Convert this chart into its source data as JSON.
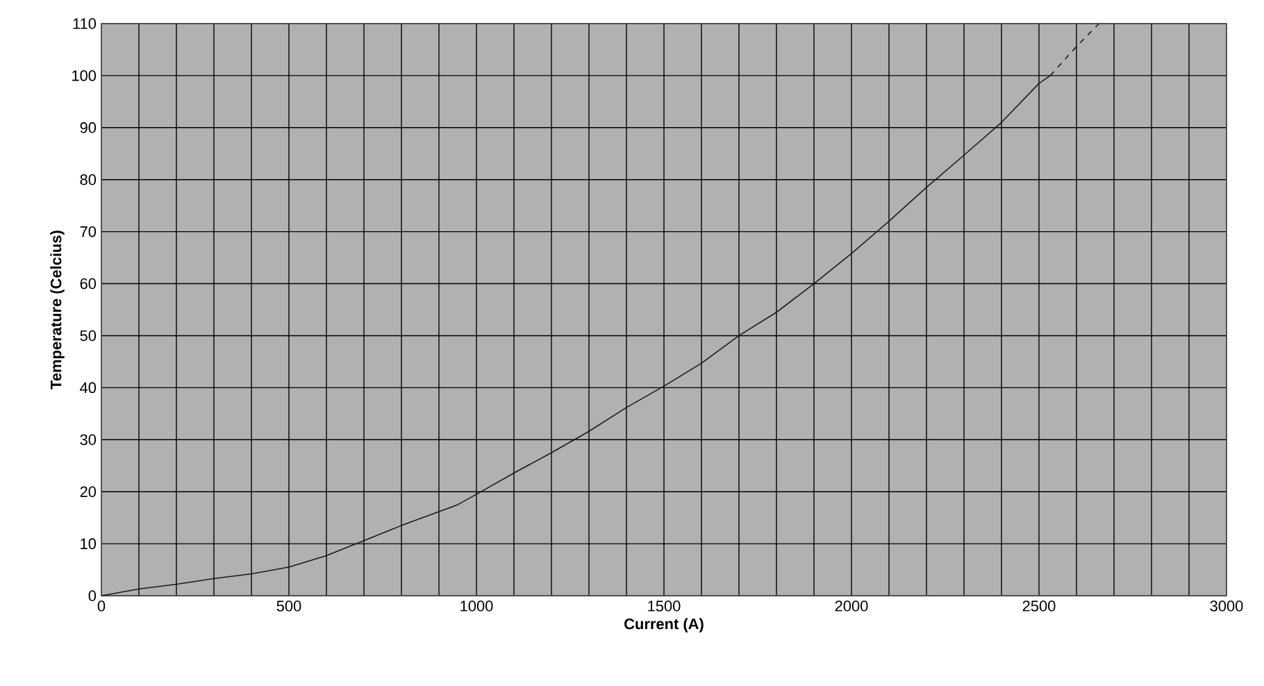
{
  "chart_data": {
    "type": "line",
    "xlabel": "Current (A)",
    "ylabel": "Temperature (Celcius)",
    "xlim": [
      0,
      3000
    ],
    "ylim": [
      0,
      110
    ],
    "xticks": [
      0,
      {
        "value": 100,
        "label": null
      },
      {
        "value": 200,
        "label": null
      },
      {
        "value": 300,
        "label": null
      },
      {
        "value": 400,
        "label": null
      },
      500,
      {
        "value": 600,
        "label": null
      },
      {
        "value": 700,
        "label": null
      },
      {
        "value": 800,
        "label": null
      },
      {
        "value": 900,
        "label": null
      },
      1000,
      {
        "value": 1100,
        "label": null
      },
      {
        "value": 1200,
        "label": null
      },
      {
        "value": 1300,
        "label": null
      },
      {
        "value": 1400,
        "label": null
      },
      1500,
      {
        "value": 1600,
        "label": null
      },
      {
        "value": 1700,
        "label": null
      },
      {
        "value": 1800,
        "label": null
      },
      {
        "value": 1900,
        "label": null
      },
      2000,
      {
        "value": 2100,
        "label": null
      },
      {
        "value": 2200,
        "label": null
      },
      {
        "value": 2300,
        "label": null
      },
      {
        "value": 2400,
        "label": null
      },
      2500,
      {
        "value": 2600,
        "label": null
      },
      {
        "value": 2700,
        "label": null
      },
      {
        "value": 2800,
        "label": null
      },
      {
        "value": 2900,
        "label": null
      },
      3000
    ],
    "yticks": [
      0,
      10,
      20,
      30,
      40,
      50,
      60,
      70,
      80,
      90,
      100,
      110
    ],
    "grid": true,
    "marker": "none",
    "series": [
      {
        "color": "#1a1a1a",
        "line_style": "solid",
        "x": [
          0,
          100,
          200,
          300,
          400,
          500,
          600,
          700,
          800,
          950,
          1000,
          1100,
          1200,
          1300,
          1400,
          1500,
          1600,
          1700,
          1800,
          1900,
          2000,
          2100,
          2200,
          2300,
          2400,
          2500,
          2530
        ],
        "values": [
          0,
          1.3,
          2.2,
          3.3,
          4.2,
          5.5,
          7.7,
          10.6,
          13.5,
          17.5,
          19.5,
          23.6,
          27.5,
          31.6,
          36.2,
          40.3,
          44.7,
          50,
          54.5,
          60,
          65.8,
          72,
          78.5,
          84.7,
          91,
          98.5,
          100
        ]
      },
      {
        "color": "#1a1a1a",
        "line_style": "dashed",
        "x": [
          2530,
          2600,
          2660
        ],
        "values": [
          100,
          105.6,
          110
        ]
      }
    ]
  }
}
